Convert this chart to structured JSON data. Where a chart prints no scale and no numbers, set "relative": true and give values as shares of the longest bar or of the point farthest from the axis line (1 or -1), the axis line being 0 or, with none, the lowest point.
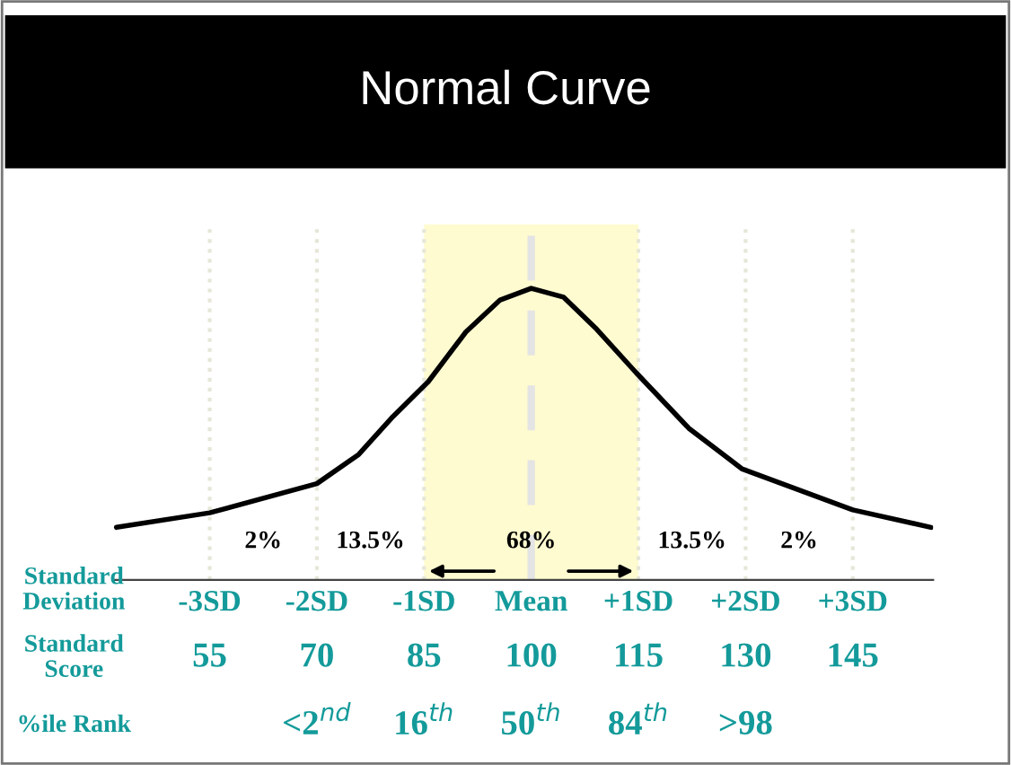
{
  "chart_data": {
    "type": "line",
    "title": "Normal Curve",
    "relative": true,
    "xlabel": "Standard Deviation",
    "xlim": [
      -3.9,
      3.75
    ],
    "xticks": [
      {
        "value": -3,
        "label": "-3SD"
      },
      {
        "value": -2,
        "label": "-2SD"
      },
      {
        "value": -1,
        "label": "-1SD"
      },
      {
        "value": 0,
        "label": "Mean"
      },
      {
        "value": 1,
        "label": "+1SD"
      },
      {
        "value": 2,
        "label": "+2SD"
      },
      {
        "value": 3,
        "label": "+3SD"
      }
    ],
    "series": [
      {
        "color": "#000000",
        "x": [
          -3.87,
          -3.0,
          -2.0,
          -1.61,
          -1.29,
          -0.96,
          -0.61,
          -0.29,
          0.0,
          0.3,
          0.61,
          0.98,
          1.47,
          1.97,
          3.0,
          3.73
        ],
        "values": [
          0.18,
          0.23,
          0.33,
          0.43,
          0.56,
          0.68,
          0.85,
          0.96,
          1.0,
          0.97,
          0.86,
          0.71,
          0.52,
          0.38,
          0.24,
          0.18
        ]
      }
    ],
    "bands": [
      {
        "axis": "x",
        "from": -1,
        "to": 1,
        "color": "#fffbd0"
      }
    ],
    "ref_lines": [
      {
        "axis": "x",
        "value": -3,
        "color": "#e6e6d8",
        "line_style": "dotted"
      },
      {
        "axis": "x",
        "value": -2,
        "color": "#e6e6d8",
        "line_style": "dotted"
      },
      {
        "axis": "x",
        "value": -1,
        "color": "#e6e6d8",
        "line_style": "dotted"
      },
      {
        "axis": "x",
        "value": 0,
        "color": "#e4e4e4",
        "line_style": "dashed"
      },
      {
        "axis": "x",
        "value": 1,
        "color": "#e6e6d8",
        "line_style": "dotted"
      },
      {
        "axis": "x",
        "value": 2,
        "color": "#e6e6d8",
        "line_style": "dotted"
      },
      {
        "axis": "x",
        "value": 3,
        "color": "#e6e6d8",
        "line_style": "dotted"
      }
    ],
    "annotations": [
      "2%",
      "13.5%",
      "68%",
      "13.5%",
      "2%",
      "Standard Score",
      "55",
      "70",
      "85",
      "100",
      "115",
      "130",
      "145",
      "%ile Rank",
      "<2$^{nd}$",
      "16$^{th}$",
      "50$^{th}$",
      "84$^{th}$",
      ">98"
    ]
  }
}
